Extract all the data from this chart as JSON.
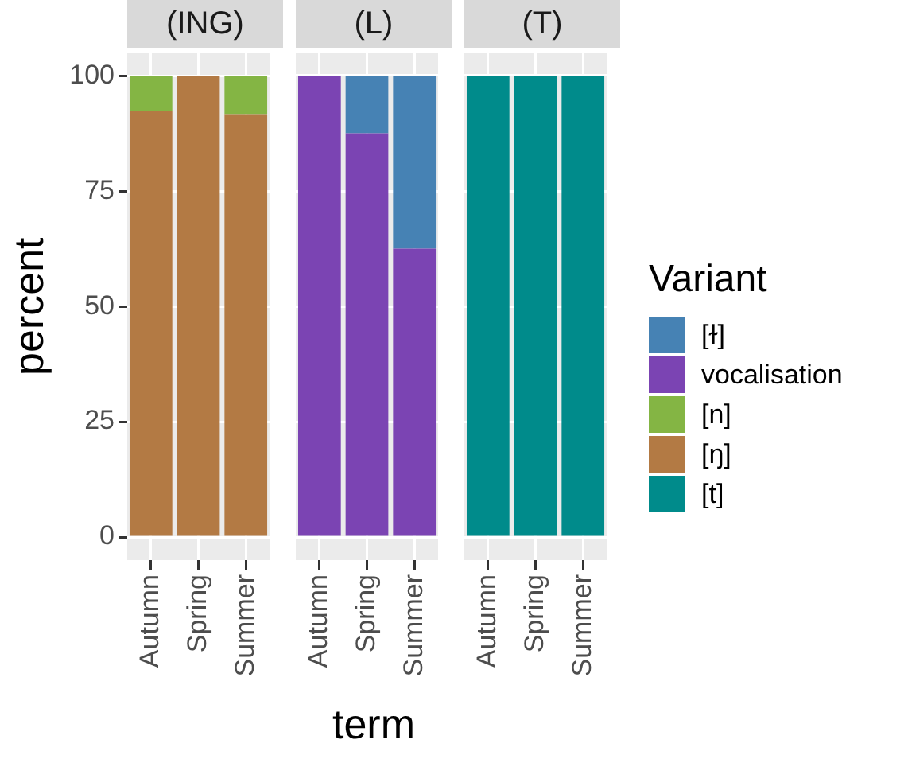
{
  "chart_data": [
    {
      "type": "bar",
      "title": "(ING)",
      "ylabel": "percent",
      "categories": [
        "Autumn",
        "Spring",
        "Summer"
      ],
      "stacked": true,
      "ylim": [
        -5,
        105
      ],
      "yticks": [
        0,
        25,
        50,
        75,
        100
      ],
      "grid": true,
      "legend": "right",
      "legend_title": "Variant",
      "series": [
        {
          "name": "[t]",
          "color": "#008b8b",
          "values": [
            null,
            null,
            null
          ]
        },
        {
          "name": "[ŋ]",
          "color": "#b37a44",
          "values": [
            92.4,
            100,
            91.7
          ]
        },
        {
          "name": "[n]",
          "color": "#84b544",
          "values": [
            7.6,
            null,
            8.3
          ]
        },
        {
          "name": "vocalisation",
          "color": "#7b44b3",
          "values": [
            null,
            null,
            null
          ]
        },
        {
          "name": "[ɫ]",
          "color": "#4682b4",
          "values": [
            null,
            null,
            null
          ]
        }
      ]
    },
    {
      "type": "bar",
      "title": "(L)",
      "xlabel": "term",
      "categories": [
        "Autumn",
        "Spring",
        "Summer"
      ],
      "stacked": true,
      "ylim": [
        -5,
        105
      ],
      "yticks": [
        0,
        25,
        50,
        75,
        100
      ],
      "grid": true,
      "tick_labels": "x",
      "series": [
        {
          "color": "#7b44b3",
          "values": [
            100,
            87.5,
            62.5
          ]
        },
        {
          "color": "#4682b4",
          "values": [
            null,
            12.5,
            37.5
          ]
        }
      ]
    },
    {
      "type": "bar",
      "title": "(T)",
      "categories": [
        "Autumn",
        "Spring",
        "Summer"
      ],
      "stacked": true,
      "ylim": [
        -5,
        105
      ],
      "yticks": [
        0,
        25,
        50,
        75,
        100
      ],
      "grid": true,
      "tick_labels": "x",
      "series": [
        {
          "color": "#008b8b",
          "values": [
            100,
            100,
            100
          ]
        }
      ]
    }
  ]
}
